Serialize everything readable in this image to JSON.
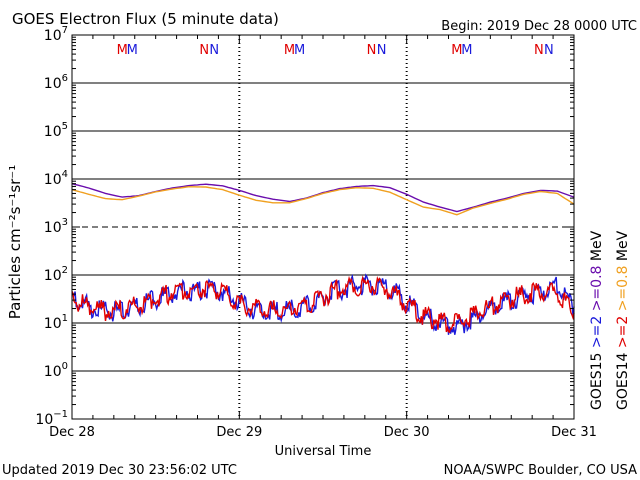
{
  "chart_data": {
    "type": "line",
    "title": "GOES Electron Flux (5 minute data)",
    "begin_label": "Begin: 2019 Dec 28 0000 UTC",
    "xlabel": "Universal Time",
    "ylabel": "Particles cm⁻²s⁻¹sr⁻¹",
    "yscale": "log",
    "ylim": [
      0.1,
      10000000
    ],
    "x_unit": "days since 2019 Dec 28 0000 UTC",
    "xlim": [
      0,
      3
    ],
    "x_ticks": [
      {
        "x": 0,
        "label": "Dec 28"
      },
      {
        "x": 1,
        "label": "Dec 29"
      },
      {
        "x": 2,
        "label": "Dec 30"
      },
      {
        "x": 3,
        "label": "Dec 31"
      }
    ],
    "y_ticks": [
      {
        "exp": -1,
        "base": "10",
        "sup": "−1"
      },
      {
        "exp": 0,
        "base": "10",
        "sup": "0"
      },
      {
        "exp": 1,
        "base": "10",
        "sup": "1"
      },
      {
        "exp": 2,
        "base": "10",
        "sup": "2"
      },
      {
        "exp": 3,
        "base": "10",
        "sup": "3"
      },
      {
        "exp": 4,
        "base": "10",
        "sup": "4"
      },
      {
        "exp": 5,
        "base": "10",
        "sup": "5"
      },
      {
        "exp": 6,
        "base": "10",
        "sup": "6"
      },
      {
        "exp": 7,
        "base": "10",
        "sup": "7"
      }
    ],
    "solid_gridlines": [
      1,
      10,
      100,
      10000,
      100000,
      1000000
    ],
    "dashed_gridlines": [
      1000
    ],
    "midnight_markers": [
      {
        "label": "M",
        "color": "#e00000",
        "x": 0.3
      },
      {
        "label": "M",
        "color": "#1a1adb",
        "x": 0.36
      },
      {
        "label": "N",
        "color": "#e00000",
        "x": 0.79
      },
      {
        "label": "N",
        "color": "#1a1adb",
        "x": 0.85
      },
      {
        "label": "M",
        "color": "#e00000",
        "x": 1.3
      },
      {
        "label": "M",
        "color": "#1a1adb",
        "x": 1.36
      },
      {
        "label": "N",
        "color": "#e00000",
        "x": 1.79
      },
      {
        "label": "N",
        "color": "#1a1adb",
        "x": 1.85
      },
      {
        "label": "M",
        "color": "#e00000",
        "x": 2.3
      },
      {
        "label": "M",
        "color": "#1a1adb",
        "x": 2.36
      },
      {
        "label": "N",
        "color": "#e00000",
        "x": 2.79
      },
      {
        "label": "N",
        "color": "#1a1adb",
        "x": 2.85
      }
    ],
    "series": [
      {
        "name": "GOES15 >=0.8 MeV",
        "color": "#6a0dad",
        "x": [
          0,
          0.1,
          0.2,
          0.3,
          0.4,
          0.5,
          0.6,
          0.7,
          0.8,
          0.9,
          1.0,
          1.1,
          1.2,
          1.3,
          1.4,
          1.5,
          1.6,
          1.7,
          1.8,
          1.9,
          2.0,
          2.1,
          2.2,
          2.3,
          2.4,
          2.5,
          2.6,
          2.7,
          2.8,
          2.9,
          3.0
        ],
        "values": [
          8000,
          6500,
          5000,
          4200,
          4500,
          5500,
          6500,
          7300,
          7800,
          7200,
          5800,
          4500,
          3800,
          3400,
          4000,
          5200,
          6300,
          7000,
          7300,
          6600,
          4800,
          3300,
          2600,
          2100,
          2600,
          3300,
          4000,
          5000,
          5800,
          5600,
          4200
        ]
      },
      {
        "name": "GOES14 >=0.8 MeV",
        "color": "#f0a020",
        "x": [
          0,
          0.1,
          0.2,
          0.3,
          0.4,
          0.5,
          0.6,
          0.7,
          0.8,
          0.9,
          1.0,
          1.1,
          1.2,
          1.3,
          1.4,
          1.5,
          1.6,
          1.7,
          1.8,
          1.9,
          2.0,
          2.1,
          2.2,
          2.3,
          2.4,
          2.5,
          2.6,
          2.7,
          2.8,
          2.9,
          3.0
        ],
        "values": [
          6000,
          4800,
          3900,
          3700,
          4400,
          5400,
          6200,
          6900,
          6800,
          6000,
          4600,
          3600,
          3200,
          3200,
          3900,
          5000,
          6000,
          6600,
          6400,
          5300,
          3700,
          2600,
          2300,
          1800,
          2500,
          3100,
          3800,
          4800,
          5500,
          5000,
          3000
        ]
      },
      {
        "name": "GOES15 >=2 MeV",
        "color": "#1a1adb",
        "x": [
          0,
          0.1,
          0.2,
          0.3,
          0.4,
          0.5,
          0.6,
          0.7,
          0.8,
          0.9,
          1.0,
          1.1,
          1.2,
          1.3,
          1.4,
          1.5,
          1.6,
          1.7,
          1.8,
          1.9,
          2.0,
          2.1,
          2.2,
          2.3,
          2.4,
          2.5,
          2.6,
          2.7,
          2.8,
          2.9,
          3.0
        ],
        "values": [
          35,
          22,
          17,
          18,
          22,
          32,
          42,
          48,
          50,
          45,
          28,
          18,
          17,
          18,
          22,
          35,
          50,
          60,
          62,
          50,
          28,
          14,
          10,
          8,
          12,
          20,
          28,
          38,
          45,
          60,
          22
        ]
      },
      {
        "name": "GOES14 >=2 MeV",
        "color": "#e00000",
        "x": [
          0,
          0.1,
          0.2,
          0.3,
          0.4,
          0.5,
          0.6,
          0.7,
          0.8,
          0.9,
          1.0,
          1.1,
          1.2,
          1.3,
          1.4,
          1.5,
          1.6,
          1.7,
          1.8,
          1.9,
          2.0,
          2.1,
          2.2,
          2.3,
          2.4,
          2.5,
          2.6,
          2.7,
          2.8,
          2.9,
          3.0
        ],
        "values": [
          32,
          21,
          18,
          19,
          24,
          34,
          44,
          50,
          50,
          44,
          26,
          19,
          18,
          20,
          24,
          36,
          52,
          60,
          60,
          48,
          26,
          14,
          11,
          10,
          14,
          21,
          30,
          40,
          48,
          45,
          16
        ]
      }
    ],
    "right_legend": [
      {
        "line1": "GOES15",
        "line1_color": "#000000",
        "line2": ">=2",
        "line2_color": "#1a1adb",
        "line3": ">=0.8",
        "line3_color": "#6a0dad",
        "line4": "MeV",
        "line4_color": "#000000"
      },
      {
        "line1": "GOES14",
        "line1_color": "#000000",
        "line2": ">=2",
        "line2_color": "#e00000",
        "line3": ">=0.8",
        "line3_color": "#f0a020",
        "line4": "MeV",
        "line4_color": "#000000"
      }
    ]
  },
  "footer": {
    "updated": "Updated 2019 Dec 30 23:56:02 UTC",
    "credit": "NOAA/SWPC Boulder, CO USA"
  }
}
